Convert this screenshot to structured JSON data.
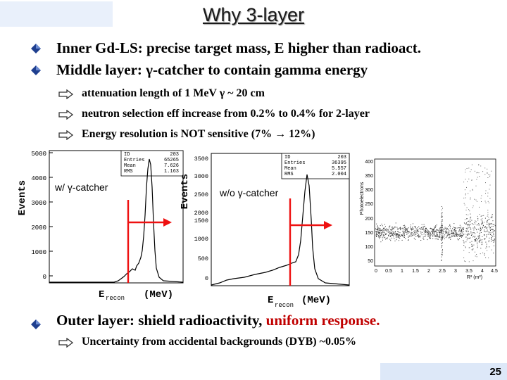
{
  "slide": {
    "title": "Why 3-layer",
    "page_number": "25"
  },
  "bullets": [
    {
      "text": "Inner Gd-LS: precise target mass, E higher than radioact."
    },
    {
      "text": "Middle layer: γ-catcher to contain gamma energy"
    }
  ],
  "sub_bullets": [
    {
      "text": "attenuation length of 1 MeV γ ~ 20 cm"
    },
    {
      "text": "neutron selection eff increase from 0.2% to 0.4% for 2-layer"
    },
    {
      "text": "Energy resolution is NOT sensitive (7% → 12%)"
    }
  ],
  "plots": {
    "with_catcher": {
      "label": "w/ γ-catcher",
      "ylabel": "Events",
      "xlabel_main": "E",
      "xlabel_sub": "recon",
      "xlabel_unit": "(MeV)",
      "yticks": [
        "5000",
        "4000",
        "3000",
        "2000",
        "1000",
        "0"
      ],
      "stats": [
        [
          "ID",
          "203"
        ],
        [
          "Entries",
          "65265"
        ],
        [
          "Mean",
          "7.626"
        ],
        [
          "RMS",
          "1.163"
        ]
      ]
    },
    "without_catcher": {
      "label": "w/o γ-catcher",
      "ylabel": "Events",
      "xlabel_main": "E",
      "xlabel_sub": "recon",
      "xlabel_unit": "(MeV)",
      "yticks": [
        "3500",
        "3000",
        "2500",
        "2000",
        "1500",
        "1000",
        "500",
        "0"
      ],
      "stats": [
        [
          "ID",
          "203"
        ],
        [
          "Entries",
          "36395"
        ],
        [
          "Mean",
          "5.557"
        ],
        [
          "RMS",
          "2.004"
        ]
      ]
    },
    "scatter": {
      "ylabel": "Photoelectrons",
      "xlabel": "R² (m²)",
      "yticks": [
        "400",
        "350",
        "300",
        "250",
        "200",
        "150",
        "100",
        "50"
      ],
      "xticks": [
        "0",
        "0.5",
        "1",
        "1.5",
        "2",
        "2.5",
        "3",
        "3.5",
        "4",
        "4.5"
      ]
    }
  },
  "bottom": {
    "bullet_prefix": "Outer layer: shield radioactivity, ",
    "bullet_highlight": "uniform response.",
    "highlight_color": "#c00000",
    "sub_bullet": "Uncertainty from accidental backgrounds (DYB) ~0.05%"
  },
  "icons": {
    "bullet": "diamond-bullet-icon",
    "sub_bullet": "hollow-arrow-icon"
  }
}
